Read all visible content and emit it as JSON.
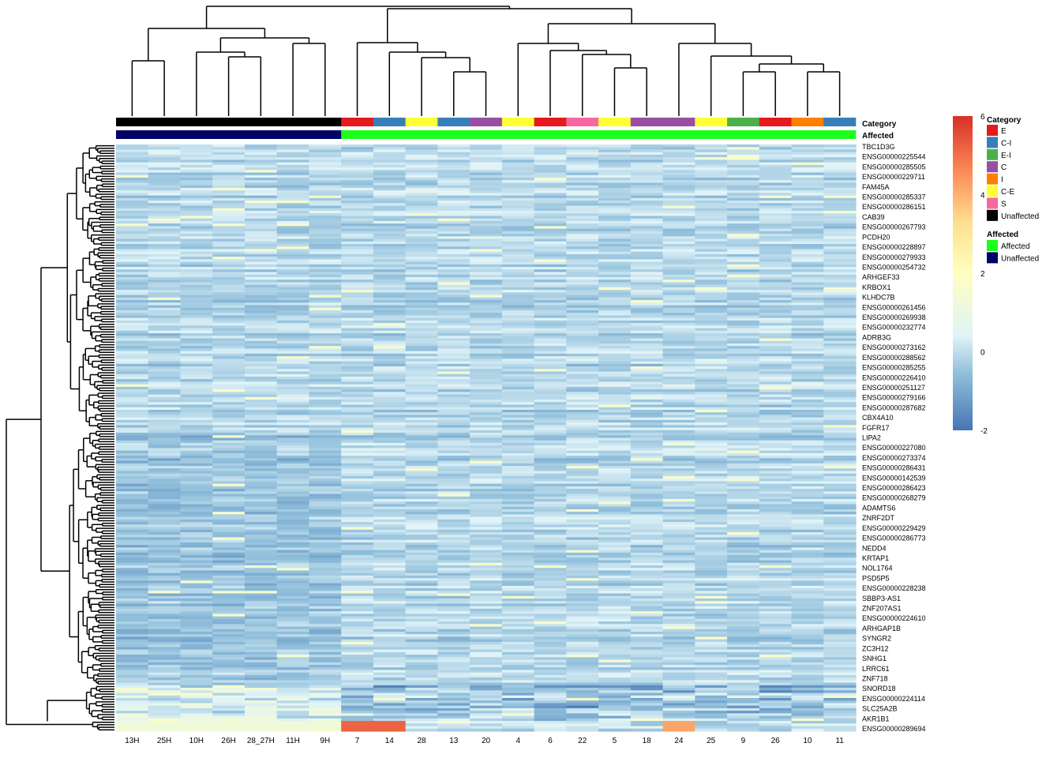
{
  "chart_data": {
    "type": "heatmap",
    "columns": [
      "13H",
      "25H",
      "10H",
      "26H",
      "28_27H",
      "11H",
      "9H",
      "7",
      "14",
      "28",
      "13",
      "20",
      "4",
      "6",
      "22",
      "5",
      "18",
      "24",
      "25",
      "9",
      "26",
      "10",
      "11"
    ],
    "annotations": {
      "category_label": "Category",
      "affected_label": "Affected",
      "category": [
        "Unaffected",
        "Unaffected",
        "Unaffected",
        "Unaffected",
        "Unaffected",
        "Unaffected",
        "Unaffected",
        "E",
        "C-I",
        "C-E",
        "C-I",
        "C",
        "C-E",
        "E",
        "S",
        "C-E",
        "C",
        "C",
        "C-E",
        "E-I",
        "E",
        "I",
        "C-I"
      ],
      "affected": [
        "Unaffected",
        "Unaffected",
        "Unaffected",
        "Unaffected",
        "Unaffected",
        "Unaffected",
        "Unaffected",
        "Affected",
        "Affected",
        "Affected",
        "Affected",
        "Affected",
        "Affected",
        "Affected",
        "Affected",
        "Affected",
        "Affected",
        "Affected",
        "Affected",
        "Affected",
        "Affected",
        "Affected",
        "Affected"
      ]
    },
    "row_labels": [
      "TBC1D3G",
      "ENSG00000225544",
      "ENSG00000285505",
      "ENSG00000229711",
      "FAM45A",
      "ENSG00000285337",
      "ENSG00000286151",
      "CAB39",
      "ENSG00000267793",
      "PCDH20",
      "ENSG00000228897",
      "ENSG00000279933",
      "ENSG00000254732",
      "ARHGEF33",
      "KRBOX1",
      "KLHDC7B",
      "ENSG00000261456",
      "ENSG00000269938",
      "ENSG00000232774",
      "ADRB3G",
      "ENSG00000273162",
      "ENSG00000288562",
      "ENSG00000285255",
      "ENSG00000226410",
      "ENSG00000251127",
      "ENSG00000279166",
      "ENSG00000287682",
      "CBX4A10",
      "FGFR17",
      "LIPA2",
      "ENSG00000227080",
      "ENSG00000273374",
      "ENSG00000286431",
      "ENSG00000142539",
      "ENSG00000286423",
      "ENSG00000268279",
      "ADAMTS6",
      "ZNRF2DT",
      "ENSG00000229429",
      "ENSG00000286773",
      "NEDD4",
      "KRTAP1",
      "NOL1764",
      "PSD5P5",
      "ENSG00000228238",
      "SBBP3-AS1",
      "ZNF207AS1",
      "ENSG00000224610",
      "ARHGAP1B",
      "SYNGR2",
      "ZC3H12",
      "SNHG1",
      "LRRC61",
      "ZNF718",
      "SNORD18",
      "ENSG00000224114",
      "SLC25A2B",
      "AKR1B1",
      "ENSG00000289694"
    ],
    "color_scale": {
      "min": -2,
      "max": 6,
      "ticks": [
        "6",
        "4",
        "2",
        "0",
        "-2"
      ],
      "tick_values": [
        6,
        4,
        2,
        0,
        -2
      ],
      "colors": [
        "#4575b4",
        "#91bfdb",
        "#e0f3f8",
        "#ffffbf",
        "#fee090",
        "#fc8d59",
        "#d73027"
      ]
    },
    "legend": {
      "category_title": "Category",
      "category_items": [
        {
          "label": "E",
          "color": "#e41a1c"
        },
        {
          "label": "C-I",
          "color": "#377eb8"
        },
        {
          "label": "E-I",
          "color": "#4daf4a"
        },
        {
          "label": "C",
          "color": "#984ea3"
        },
        {
          "label": "I",
          "color": "#ff7f00"
        },
        {
          "label": "C-E",
          "color": "#ffff33"
        },
        {
          "label": "S",
          "color": "#f768a1"
        },
        {
          "label": "Unaffected",
          "color": "#000000"
        }
      ],
      "affected_title": "Affected",
      "affected_items": [
        {
          "label": "Affected",
          "color": "#1aff1a"
        },
        {
          "label": "Unaffected",
          "color": "#000066"
        }
      ]
    },
    "column_dendrogram_order": "13H 25H 10H 26H 28_27H 11H 9H | 7 14 28 13 20 4 6 22 5 18 24 25 9 26 10 11",
    "grid": false
  }
}
